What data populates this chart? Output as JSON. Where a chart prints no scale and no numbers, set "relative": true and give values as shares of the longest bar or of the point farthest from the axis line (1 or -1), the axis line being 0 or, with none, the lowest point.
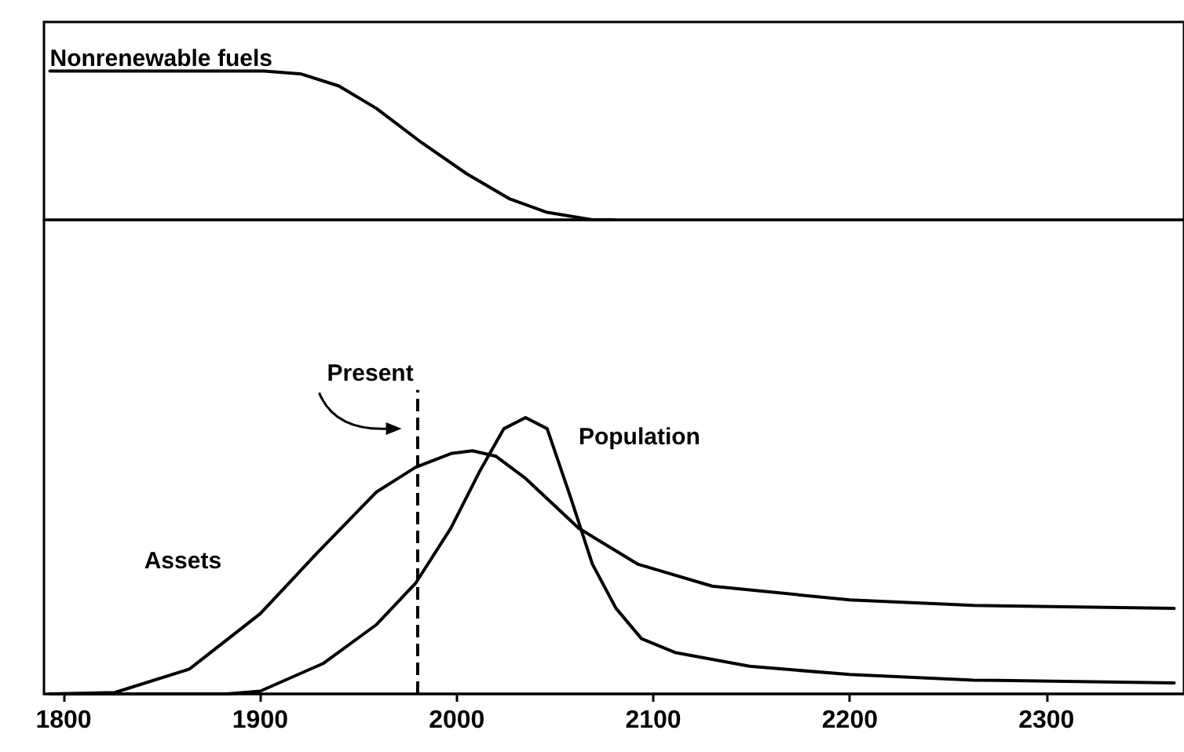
{
  "chart_data": [
    {
      "type": "line",
      "relative": true,
      "xlim": [
        1790,
        2370
      ],
      "xticks": [
        1800,
        1900,
        2000,
        2100,
        2200,
        2300
      ],
      "tick_labels": false,
      "marker": "none",
      "line_style": "solid",
      "legend": false,
      "grid": false,
      "series": [
        {
          "name": "Nonrenewable fuels",
          "color": "#000000",
          "x": [
            1793,
            1902,
            1921,
            1940,
            1959,
            1982,
            2005,
            2027,
            2046,
            2069,
            2080
          ],
          "values": [
            1,
            1,
            0.98,
            0.9,
            0.75,
            0.52,
            0.31,
            0.14,
            0.05,
            0,
            0
          ]
        }
      ]
    },
    {
      "type": "line",
      "relative": true,
      "xlim": [
        1790,
        2370
      ],
      "xticks": [
        1800,
        1900,
        2000,
        2100,
        2200,
        2300
      ],
      "tick_labels": "x",
      "marker": "none",
      "line_style": "solid",
      "legend": false,
      "grid": false,
      "series": [
        {
          "name": "Assets",
          "color": "#000000",
          "x": [
            1793,
            1826,
            1864,
            1900,
            1929,
            1959,
            1979,
            1997,
            2008,
            2020,
            2035,
            2062,
            2092,
            2130,
            2200,
            2263,
            2365
          ],
          "values": [
            0,
            0.005,
            0.09,
            0.29,
            0.51,
            0.73,
            0.82,
            0.87,
            0.88,
            0.86,
            0.78,
            0.6,
            0.47,
            0.39,
            0.34,
            0.32,
            0.31
          ]
        },
        {
          "name": "Population",
          "color": "#000000",
          "x": [
            1793,
            1883,
            1900,
            1932,
            1959,
            1979,
            1997,
            2012,
            2024,
            2035,
            2046,
            2058,
            2069,
            2081,
            2094,
            2111,
            2149,
            2200,
            2263,
            2365
          ],
          "values": [
            0,
            0,
            0.01,
            0.11,
            0.25,
            0.4,
            0.6,
            0.81,
            0.96,
            1,
            0.96,
            0.71,
            0.47,
            0.31,
            0.2,
            0.15,
            0.1,
            0.07,
            0.05,
            0.04
          ]
        }
      ],
      "ref_lines": [
        {
          "axis": "x",
          "value": 1980,
          "label": "Present",
          "line_style": "dashed",
          "color": "#000000"
        }
      ]
    }
  ]
}
